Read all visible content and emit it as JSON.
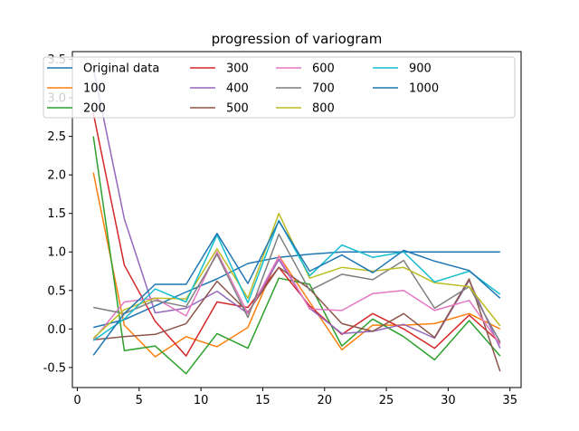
{
  "chart_data": {
    "type": "line",
    "title": "progression of variogram",
    "xlabel": "",
    "ylabel": "",
    "xlim": [
      -0.4,
      35.9
    ],
    "ylim": [
      -0.76,
      3.6
    ],
    "xticks": [
      0,
      5,
      10,
      15,
      20,
      25,
      30,
      35
    ],
    "yticks": [
      -0.5,
      0.0,
      0.5,
      1.0,
      1.5,
      2.0,
      2.5,
      3.0,
      3.5
    ],
    "x": [
      1.3,
      3.8,
      6.3,
      8.8,
      11.3,
      13.8,
      16.3,
      18.8,
      21.4,
      23.9,
      26.4,
      28.9,
      31.7,
      34.2
    ],
    "legend_position": "upper center",
    "legend_ncol": 5,
    "series": [
      {
        "name": "Original data",
        "color": "#1f77b4",
        "values": [
          0.02,
          0.12,
          0.3,
          0.48,
          0.65,
          0.85,
          0.93,
          0.97,
          1.0,
          1.0,
          1.0,
          1.0,
          1.0,
          1.0
        ]
      },
      {
        "name": "100",
        "color": "#ff7f0e",
        "values": [
          2.03,
          0.05,
          -0.36,
          -0.1,
          -0.23,
          0.02,
          0.95,
          0.35,
          -0.27,
          0.05,
          0.05,
          0.07,
          0.2,
          0.0
        ]
      },
      {
        "name": "200",
        "color": "#2ca02c",
        "values": [
          2.5,
          -0.28,
          -0.22,
          -0.58,
          -0.06,
          -0.25,
          0.66,
          0.58,
          -0.22,
          0.13,
          -0.1,
          -0.4,
          0.11,
          -0.35
        ]
      },
      {
        "name": "300",
        "color": "#d62728",
        "values": [
          2.8,
          0.83,
          0.1,
          -0.35,
          0.35,
          0.28,
          0.8,
          0.3,
          -0.07,
          0.2,
          0.0,
          -0.25,
          0.18,
          -0.18
        ]
      },
      {
        "name": "400",
        "color": "#9467bd",
        "values": [
          3.38,
          1.43,
          0.21,
          0.27,
          0.49,
          0.2,
          0.9,
          0.27,
          -0.06,
          -0.03,
          0.06,
          -0.12,
          0.63,
          -0.25
        ]
      },
      {
        "name": "500",
        "color": "#8c564b",
        "values": [
          -0.14,
          -0.1,
          -0.07,
          0.07,
          0.62,
          0.22,
          0.8,
          0.52,
          0.07,
          -0.03,
          0.2,
          -0.11,
          0.65,
          -0.55
        ]
      },
      {
        "name": "600",
        "color": "#e377c2",
        "values": [
          -0.14,
          0.35,
          0.4,
          0.17,
          1.0,
          0.2,
          0.94,
          0.26,
          0.24,
          0.46,
          0.5,
          0.24,
          0.37,
          -0.2
        ]
      },
      {
        "name": "700",
        "color": "#7f7f7f",
        "values": [
          0.28,
          0.2,
          0.37,
          0.29,
          0.97,
          0.15,
          1.23,
          0.5,
          0.71,
          0.64,
          0.89,
          0.27,
          0.55,
          -0.17
        ]
      },
      {
        "name": "800",
        "color": "#bcbd22",
        "values": [
          -0.12,
          0.25,
          0.4,
          0.39,
          1.04,
          0.4,
          1.5,
          0.66,
          0.8,
          0.75,
          0.8,
          0.6,
          0.55,
          0.04
        ]
      },
      {
        "name": "900",
        "color": "#17becf",
        "values": [
          -0.15,
          0.13,
          0.52,
          0.35,
          1.22,
          0.34,
          1.41,
          0.69,
          1.09,
          0.93,
          1.0,
          0.61,
          0.75,
          0.45
        ]
      },
      {
        "name": "1000",
        "color": "#1f77b4",
        "values": [
          -0.34,
          0.2,
          0.58,
          0.58,
          1.24,
          0.59,
          1.4,
          0.75,
          0.96,
          0.73,
          1.02,
          0.88,
          0.76,
          0.4
        ]
      }
    ]
  }
}
